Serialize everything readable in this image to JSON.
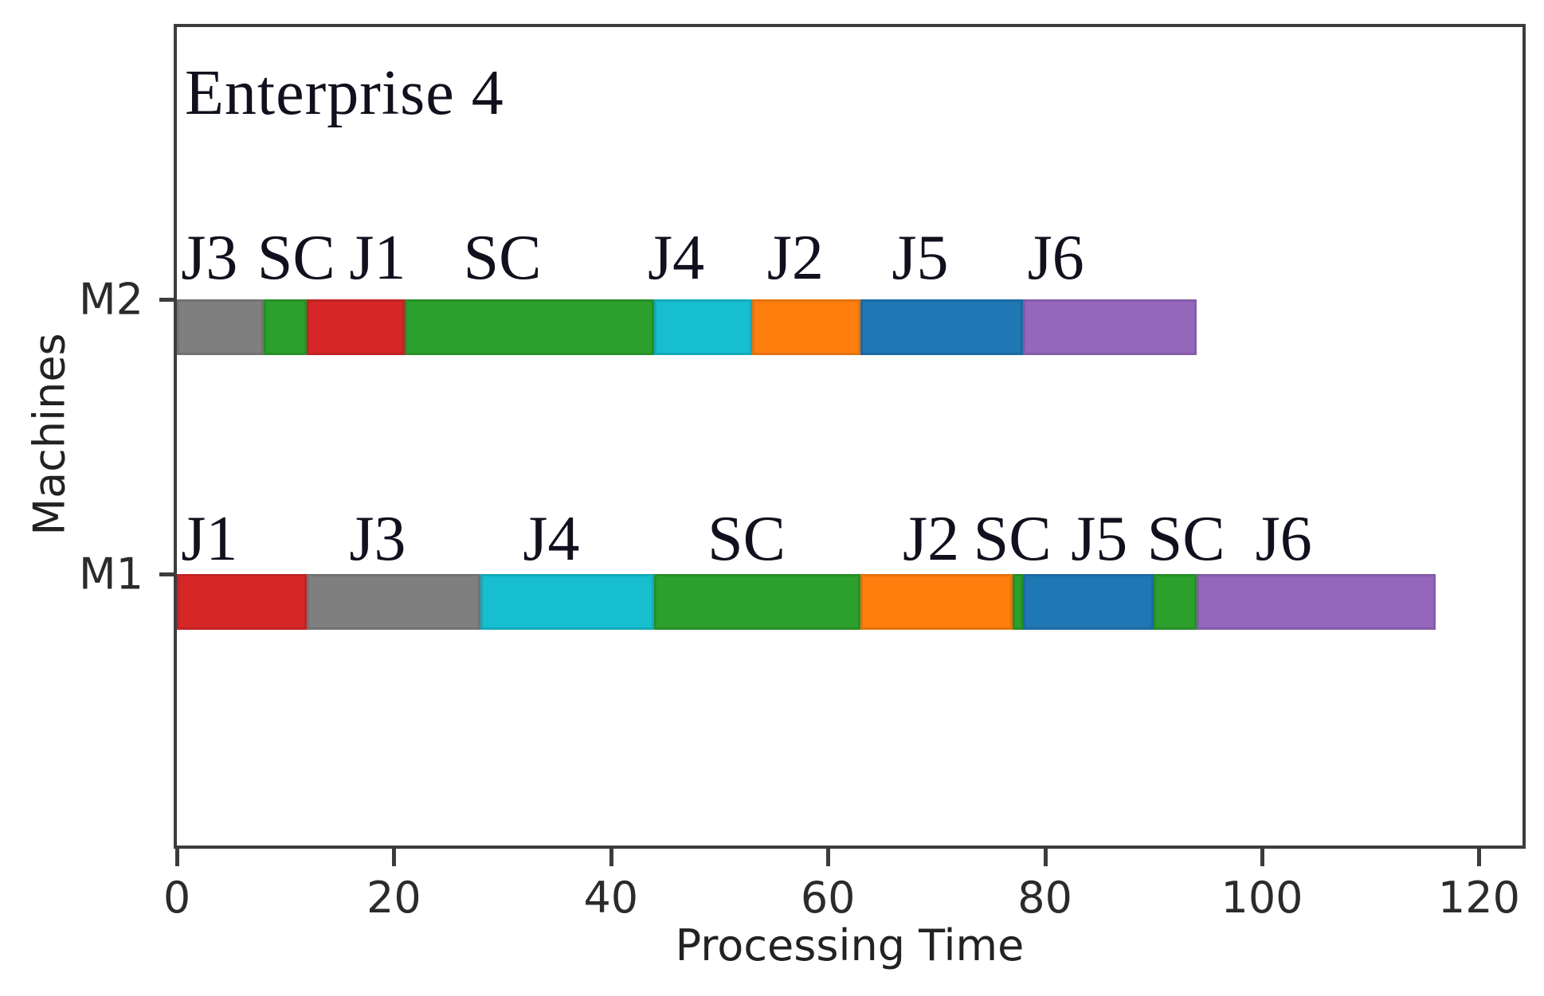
{
  "chart_data": {
    "type": "gantt",
    "title": "Enterprise 4",
    "xlabel": "Processing Time",
    "ylabel": "Machines",
    "xlim": [
      0,
      124
    ],
    "x_ticks": [
      0,
      20,
      40,
      60,
      80,
      100,
      120
    ],
    "grid": false,
    "legend": "none",
    "job_colors": {
      "J1": "#d62728",
      "J2": "#ff7f0e",
      "J3": "#7f7f7f",
      "J4": "#17becf",
      "J5": "#1f77b4",
      "J6": "#9467bd",
      "SC": "#2ca02c"
    },
    "machines": [
      {
        "name": "M2",
        "segments": [
          {
            "job": "J3",
            "start": 0,
            "end": 8,
            "label_t": 3
          },
          {
            "job": "SC",
            "start": 8,
            "end": 12,
            "label_t": 11
          },
          {
            "job": "J1",
            "start": 12,
            "end": 21,
            "label_t": 18.5
          },
          {
            "job": "SC",
            "start": 21,
            "end": 44,
            "label_t": 30
          },
          {
            "job": "J4",
            "start": 44,
            "end": 53,
            "label_t": 46
          },
          {
            "job": "J2",
            "start": 53,
            "end": 63,
            "label_t": 57
          },
          {
            "job": "J5",
            "start": 63,
            "end": 78,
            "label_t": 68.5
          },
          {
            "job": "J6",
            "start": 78,
            "end": 94,
            "label_t": 81
          }
        ]
      },
      {
        "name": "M1",
        "segments": [
          {
            "job": "J1",
            "start": 0,
            "end": 12,
            "label_t": 3
          },
          {
            "job": "J3",
            "start": 12,
            "end": 28,
            "label_t": 18.5
          },
          {
            "job": "J4",
            "start": 28,
            "end": 44,
            "label_t": 34.5
          },
          {
            "job": "SC",
            "start": 44,
            "end": 63,
            "label_t": 52.5
          },
          {
            "job": "J2",
            "start": 63,
            "end": 77,
            "label_t": 69.5
          },
          {
            "job": "SC",
            "start": 77,
            "end": 78,
            "label_t": 77
          },
          {
            "job": "J5",
            "start": 78,
            "end": 90,
            "label_t": 85
          },
          {
            "job": "SC",
            "start": 90,
            "end": 94,
            "label_t": 93
          },
          {
            "job": "J6",
            "start": 94,
            "end": 116,
            "label_t": 102
          }
        ]
      }
    ]
  }
}
